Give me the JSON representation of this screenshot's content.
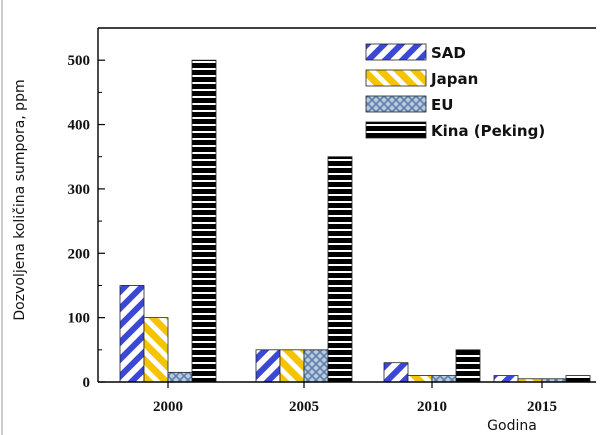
{
  "chart_data": {
    "type": "bar",
    "title": "",
    "xlabel": "Godina",
    "ylabel": "Dozvoljena količina sumpora, ppm",
    "categories": [
      "2000",
      "2005",
      "2010",
      "2015"
    ],
    "series": [
      {
        "name": "SAD",
        "values": [
          150,
          50,
          30,
          10
        ],
        "color": "#3b48d6",
        "pattern": "diag-stripes"
      },
      {
        "name": "Japan",
        "values": [
          100,
          50,
          10,
          5
        ],
        "color": "#f5c400",
        "pattern": "diag-stripes-reverse"
      },
      {
        "name": "EU",
        "values": [
          15,
          50,
          10,
          5
        ],
        "color": "#7f9ec4",
        "pattern": "crosshatch"
      },
      {
        "name": "Kina (Peking)",
        "values": [
          500,
          350,
          50,
          10
        ],
        "color": "#000000",
        "pattern": "horizontal-bands"
      }
    ],
    "ylim": [
      0,
      550
    ],
    "yticks": [
      0,
      100,
      200,
      300,
      400,
      500
    ],
    "grid": false,
    "legend_position": "top-right"
  }
}
